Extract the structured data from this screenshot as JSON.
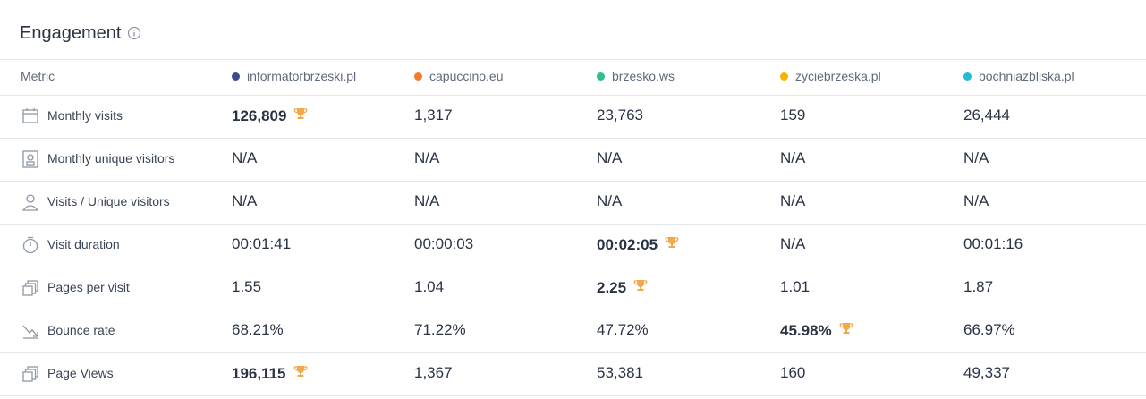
{
  "header": {
    "title": "Engagement"
  },
  "table": {
    "metric_header": "Metric",
    "columns": [
      {
        "name": "informatorbrzeski.pl",
        "color": "#3d4a8c"
      },
      {
        "name": "capuccino.eu",
        "color": "#f47b28"
      },
      {
        "name": "brzesko.ws",
        "color": "#2ebf8b"
      },
      {
        "name": "zyciebrzeska.pl",
        "color": "#f7b500"
      },
      {
        "name": "bochniazbliska.pl",
        "color": "#22bcd6"
      }
    ],
    "rows": [
      {
        "metric": "Monthly visits",
        "values": [
          "126,809",
          "1,317",
          "23,763",
          "159",
          "26,444"
        ],
        "best": 0
      },
      {
        "metric": "Monthly unique visitors",
        "values": [
          "N/A",
          "N/A",
          "N/A",
          "N/A",
          "N/A"
        ]
      },
      {
        "metric": "Visits / Unique visitors",
        "values": [
          "N/A",
          "N/A",
          "N/A",
          "N/A",
          "N/A"
        ]
      },
      {
        "metric": "Visit duration",
        "values": [
          "00:01:41",
          "00:00:03",
          "00:02:05",
          "N/A",
          "00:01:16"
        ],
        "best": 2
      },
      {
        "metric": "Pages per visit",
        "values": [
          "1.55",
          "1.04",
          "2.25",
          "1.01",
          "1.87"
        ],
        "best": 2
      },
      {
        "metric": "Bounce rate",
        "values": [
          "68.21%",
          "71.22%",
          "47.72%",
          "45.98%",
          "66.97%"
        ],
        "best": 3
      },
      {
        "metric": "Page Views",
        "values": [
          "196,115",
          "1,367",
          "53,381",
          "160",
          "49,337"
        ],
        "best": 0
      }
    ]
  }
}
